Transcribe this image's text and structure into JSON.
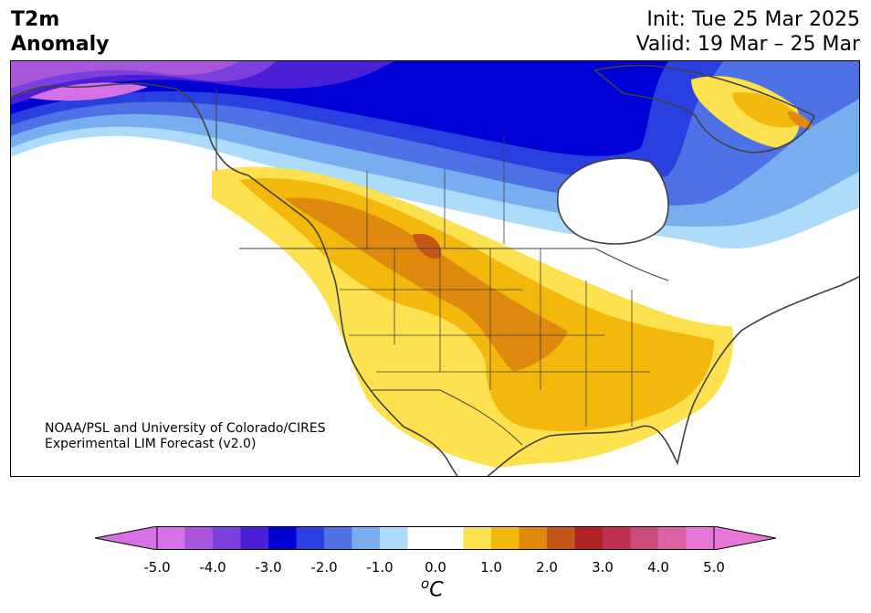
{
  "title": {
    "line1": "T2m",
    "line2": "Anomaly"
  },
  "init": "Init: Tue 25 Mar 2025",
  "valid": "Valid: 19 Mar – 25 Mar",
  "credit": {
    "line1": "NOAA/PSL and University of Colorado/CIRES",
    "line2": "Experimental LIM Forecast (v2.0)"
  },
  "colorbar": {
    "ticks": [
      "-5.0",
      "-4.0",
      "-3.0",
      "-2.0",
      "-1.0",
      "0.0",
      "1.0",
      "2.0",
      "3.0",
      "4.0",
      "5.0"
    ],
    "unit_prefix": "o",
    "unit": "C",
    "colors": [
      "#d670e6",
      "#a855db",
      "#7a3fdd",
      "#4a1fd6",
      "#0000d6",
      "#2a3fdf",
      "#4e72e6",
      "#77aef0",
      "#acdcfa",
      "#ffffff",
      "#ffffff",
      "#fde14f",
      "#f2b80c",
      "#df8a0e",
      "#c45616",
      "#b22222",
      "#c0304c",
      "#cc4b7a",
      "#dc62a8",
      "#e777d6"
    ],
    "extend_low": "#d670e6",
    "extend_high": "#e777d6"
  }
}
